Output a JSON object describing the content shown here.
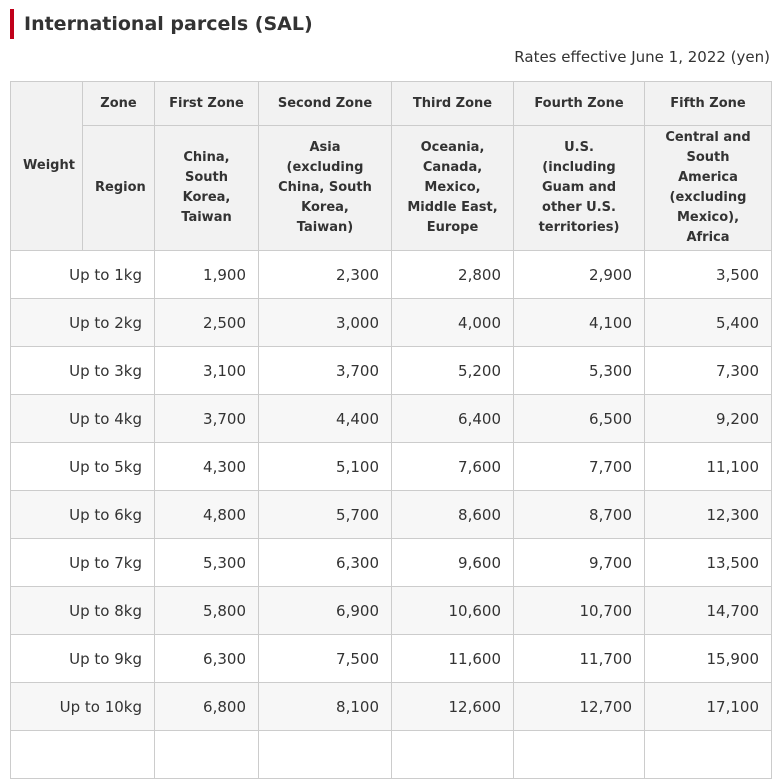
{
  "title": "International parcels (SAL)",
  "effective": "Rates effective June 1, 2022 (yen)",
  "header": {
    "weight": "Weight",
    "zone": "Zone",
    "region": "Region",
    "zones": [
      "First Zone",
      "Second Zone",
      "Third Zone",
      "Fourth Zone",
      "Fifth Zone"
    ],
    "regions": [
      "China, South Korea, Taiwan",
      "Asia (excluding China, South Korea, Taiwan)",
      "Oceania, Canada, Mexico, Middle East, Europe",
      "U.S. (including Guam and other U.S. territories)",
      "Central and South America (excluding Mexico), Africa"
    ]
  },
  "rows": [
    {
      "weight": "Up to 1kg",
      "rates": [
        "1,900",
        "2,300",
        "2,800",
        "2,900",
        "3,500"
      ]
    },
    {
      "weight": "Up to 2kg",
      "rates": [
        "2,500",
        "3,000",
        "4,000",
        "4,100",
        "5,400"
      ]
    },
    {
      "weight": "Up to 3kg",
      "rates": [
        "3,100",
        "3,700",
        "5,200",
        "5,300",
        "7,300"
      ]
    },
    {
      "weight": "Up to 4kg",
      "rates": [
        "3,700",
        "4,400",
        "6,400",
        "6,500",
        "9,200"
      ]
    },
    {
      "weight": "Up to 5kg",
      "rates": [
        "4,300",
        "5,100",
        "7,600",
        "7,700",
        "11,100"
      ]
    },
    {
      "weight": "Up to 6kg",
      "rates": [
        "4,800",
        "5,700",
        "8,600",
        "8,700",
        "12,300"
      ]
    },
    {
      "weight": "Up to 7kg",
      "rates": [
        "5,300",
        "6,300",
        "9,600",
        "9,700",
        "13,500"
      ]
    },
    {
      "weight": "Up to 8kg",
      "rates": [
        "5,800",
        "6,900",
        "10,600",
        "10,700",
        "14,700"
      ]
    },
    {
      "weight": "Up to 9kg",
      "rates": [
        "6,300",
        "7,500",
        "11,600",
        "11,700",
        "15,900"
      ]
    },
    {
      "weight": "Up to 10kg",
      "rates": [
        "6,800",
        "8,100",
        "12,600",
        "12,700",
        "17,100"
      ]
    },
    {
      "weight": "",
      "rates": [
        "",
        "",
        "",
        "",
        ""
      ]
    }
  ]
}
